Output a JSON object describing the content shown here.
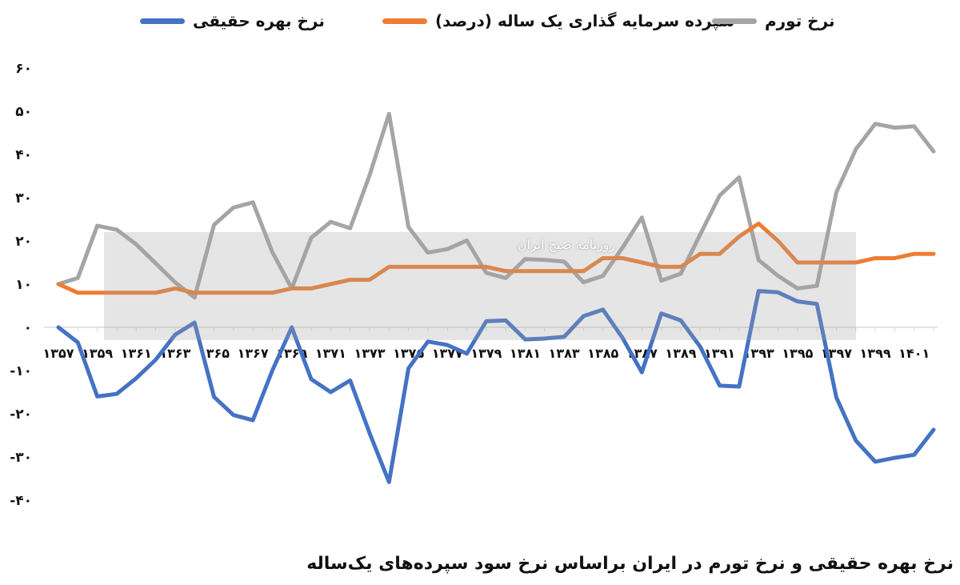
{
  "legend": {
    "inflation": "نرخ تورم",
    "deposit": "سپرده سرمایه گذاری یک ساله (درصد)",
    "real": "نرخ بهره حقیقی"
  },
  "caption": "نرخ بهره حقیقی و نرخ تورم در ایران براساس نرخ سود سپرده‌های یک‌ساله",
  "watermark": "روزنامه صبح ایران",
  "colors": {
    "inflation": "#a5a5a5",
    "deposit": "#ed7d31",
    "real": "#4472c4",
    "grid": "#d9d9d9"
  },
  "chart_data": {
    "type": "line",
    "x": [
      1357,
      1358,
      1359,
      1360,
      1361,
      1362,
      1363,
      1364,
      1365,
      1366,
      1367,
      1368,
      1369,
      1370,
      1371,
      1372,
      1373,
      1374,
      1375,
      1376,
      1377,
      1378,
      1379,
      1380,
      1381,
      1382,
      1383,
      1384,
      1385,
      1386,
      1387,
      1388,
      1389,
      1390,
      1391,
      1392,
      1393,
      1394,
      1395,
      1396,
      1397,
      1398,
      1399,
      1400,
      1401,
      1402
    ],
    "x_tick_labels": [
      "۱۳۵۷",
      "۱۳۵۹",
      "۱۳۶۱",
      "۱۳۶۳",
      "۱۳۶۵",
      "۱۳۶۷",
      "۱۳۶۹",
      "۱۳۷۱",
      "۱۳۷۳",
      "۱۳۷۵",
      "۱۳۷۷",
      "۱۳۷۹",
      "۱۳۸۱",
      "۱۳۸۳",
      "۱۳۸۵",
      "۱۳۸۷",
      "۱۳۸۹",
      "۱۳۹۱",
      "۱۳۹۳",
      "۱۳۹۵",
      "۱۳۹۷",
      "۱۳۹۹",
      "۱۴۰۱"
    ],
    "y_tick_labels": [
      "۶۰",
      "۵۰",
      "۴۰",
      "۳۰",
      "۲۰",
      "۱۰",
      "۰",
      "-۱۰",
      "-۲۰",
      "-۳۰",
      "-۴۰"
    ],
    "y_ticks": [
      60,
      50,
      40,
      30,
      20,
      10,
      0,
      -10,
      -20,
      -30,
      -40
    ],
    "ylim": [
      -40,
      60
    ],
    "series": [
      {
        "name": "نرخ تورم",
        "key": "inflation",
        "values": [
          10,
          11.4,
          23.5,
          22.6,
          19.2,
          14.8,
          10.4,
          6.9,
          23.7,
          27.7,
          28.9,
          17.4,
          9,
          20.7,
          24.4,
          22.9,
          35.2,
          49.4,
          23.2,
          17.3,
          18.1,
          20.1,
          12.6,
          11.4,
          15.8,
          15.6,
          15.2,
          10.4,
          11.9,
          18.4,
          25.4,
          10.8,
          12.4,
          21.5,
          30.5,
          34.7,
          15.6,
          11.9,
          9,
          9.6,
          31.2,
          41.2,
          47.1,
          46.2,
          46.5,
          40.7
        ]
      },
      {
        "name": "سپرده سرمایه گذاری یک ساله (درصد)",
        "key": "deposit",
        "values": [
          10,
          8,
          8,
          8,
          8,
          8,
          9,
          8,
          8,
          8,
          8,
          8,
          9,
          9,
          10,
          11,
          11,
          14,
          14,
          14,
          14,
          14,
          14,
          13,
          13,
          13,
          13,
          13,
          16,
          16,
          15,
          14,
          14,
          17,
          17,
          21,
          24,
          20,
          15,
          15,
          15,
          15,
          16,
          16,
          17,
          17
        ]
      },
      {
        "name": "نرخ بهره حقیقی",
        "key": "real",
        "values": [
          0,
          -3.5,
          -16,
          -15.4,
          -11.8,
          -7.5,
          -1.7,
          1.1,
          -16.1,
          -20.3,
          -21.5,
          -10,
          0,
          -12,
          -15,
          -12.3,
          -24.5,
          -35.8,
          -9.5,
          -3.3,
          -4.1,
          -6.1,
          1.4,
          1.6,
          -2.8,
          -2.6,
          -2.2,
          2.6,
          4.1,
          -2.4,
          -10.4,
          3.2,
          1.6,
          -4.5,
          -13.5,
          -13.7,
          8.4,
          8.1,
          6,
          5.4,
          -16.2,
          -26.2,
          -31.1,
          -30.2,
          -29.5,
          -23.7
        ]
      }
    ]
  }
}
